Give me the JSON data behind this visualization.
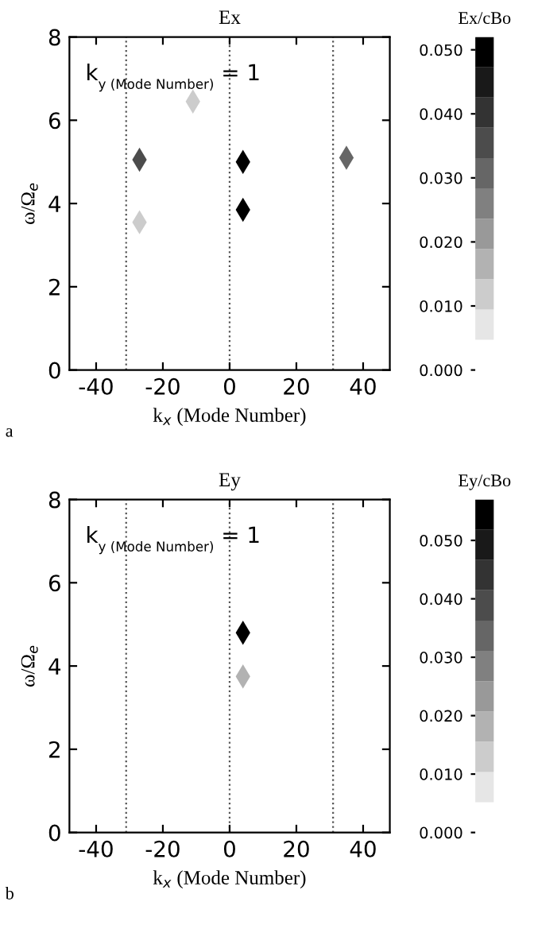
{
  "chart_data": [
    {
      "type": "scatter",
      "title": "Ex",
      "xlabel": "k$_{x}$ (Mode Number)",
      "ylabel": "ω/Ω$_{e}$",
      "clabel": "Ex/cBo",
      "annotations": [
        "k$_{y (Mode Number)}$ = 1",
        "a"
      ],
      "x": [
        -27,
        4,
        4,
        35,
        -11,
        -27
      ],
      "values": [
        5.05,
        5.0,
        3.85,
        5.1,
        6.45,
        3.55
      ],
      "cvalues": [
        0.035,
        0.05,
        0.05,
        0.03,
        0.01,
        0.01
      ],
      "marker": "diamond",
      "xlim": [
        -48,
        48
      ],
      "ylim": [
        0,
        8
      ],
      "xticks": [
        -40,
        -20,
        0,
        20,
        40
      ],
      "yticks": [
        0,
        2,
        4,
        6,
        8
      ],
      "clim": [
        0,
        0.052
      ],
      "cticks": [
        {
          "value": 0,
          "label": "0.000"
        },
        {
          "value": 0.01,
          "label": "0.010"
        },
        {
          "value": 0.02,
          "label": "0.020"
        },
        {
          "value": 0.03,
          "label": "0.030"
        },
        {
          "value": 0.04,
          "label": "0.040"
        },
        {
          "value": 0.05,
          "label": "0.050"
        }
      ],
      "ref_lines": [
        {
          "axis": "x",
          "value": -31,
          "line_style": "dotted"
        },
        {
          "axis": "x",
          "value": 0,
          "line_style": "dotted"
        },
        {
          "axis": "x",
          "value": 31,
          "line_style": "dotted"
        }
      ],
      "grid": false
    },
    {
      "type": "scatter",
      "title": "Ey",
      "xlabel": "k$_{x}$ (Mode Number)",
      "ylabel": "ω/Ω$_{e}$",
      "clabel": "Ey/cBo",
      "annotations": [
        "k$_{y (Mode Number)}$ = 1",
        "b"
      ],
      "x": [
        4,
        4
      ],
      "values": [
        4.8,
        3.75
      ],
      "cvalues": [
        0.056,
        0.02
      ],
      "marker": "diamond",
      "xlim": [
        -48,
        48
      ],
      "ylim": [
        0,
        8
      ],
      "xticks": [
        -40,
        -20,
        0,
        20,
        40
      ],
      "yticks": [
        0,
        2,
        4,
        6,
        8
      ],
      "clim": [
        0,
        0.057
      ],
      "cticks": [
        {
          "value": 0,
          "label": "0.000"
        },
        {
          "value": 0.01,
          "label": "0.010"
        },
        {
          "value": 0.02,
          "label": "0.020"
        },
        {
          "value": 0.03,
          "label": "0.030"
        },
        {
          "value": 0.04,
          "label": "0.040"
        },
        {
          "value": 0.05,
          "label": "0.050"
        }
      ],
      "ref_lines": [
        {
          "axis": "x",
          "value": -31,
          "line_style": "dotted"
        },
        {
          "axis": "x",
          "value": 0,
          "line_style": "dotted"
        },
        {
          "axis": "x",
          "value": 31,
          "line_style": "dotted"
        }
      ],
      "grid": false
    }
  ]
}
